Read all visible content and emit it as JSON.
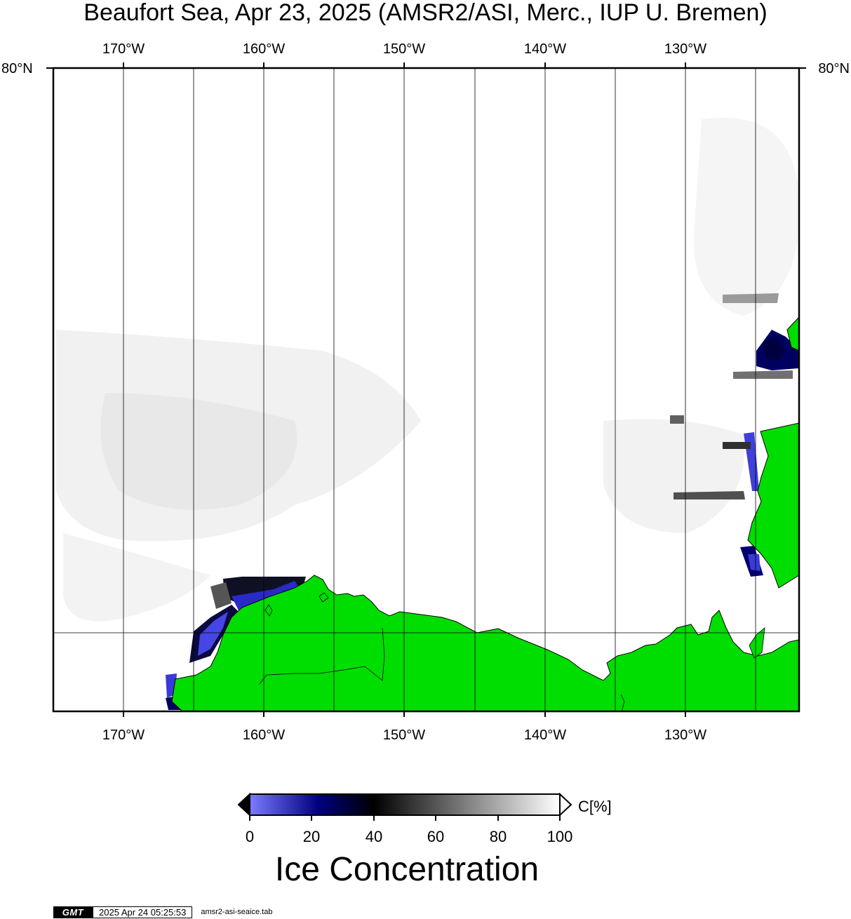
{
  "title": "Beaufort Sea, Apr 23, 2025 (AMSR2/ASI, Merc., IUP U. Bremen)",
  "projection": "Mercator",
  "axes": {
    "longitude_ticks": [
      "170°W",
      "160°W",
      "150°W",
      "140°W",
      "130°W"
    ],
    "latitude_label": "80°N",
    "lon_range": [
      -175,
      -122
    ],
    "lat_top": 80
  },
  "colorbar": {
    "unit_label": "C[%]",
    "ticks": [
      "0",
      "20",
      "40",
      "60",
      "80",
      "100"
    ],
    "title": "Ice Concentration",
    "colors": [
      "#7b7bff",
      "#000080",
      "#000000",
      "#7f7f7f",
      "#ffffff"
    ]
  },
  "colors": {
    "land": "#00dd00",
    "high_ice": "#ffffff",
    "gridline": "#000000"
  },
  "footer": {
    "logo": "GMT",
    "timestamp": "2025 Apr 24 05:25:53",
    "source_file": "amsr2-asi-seaice.tab"
  }
}
